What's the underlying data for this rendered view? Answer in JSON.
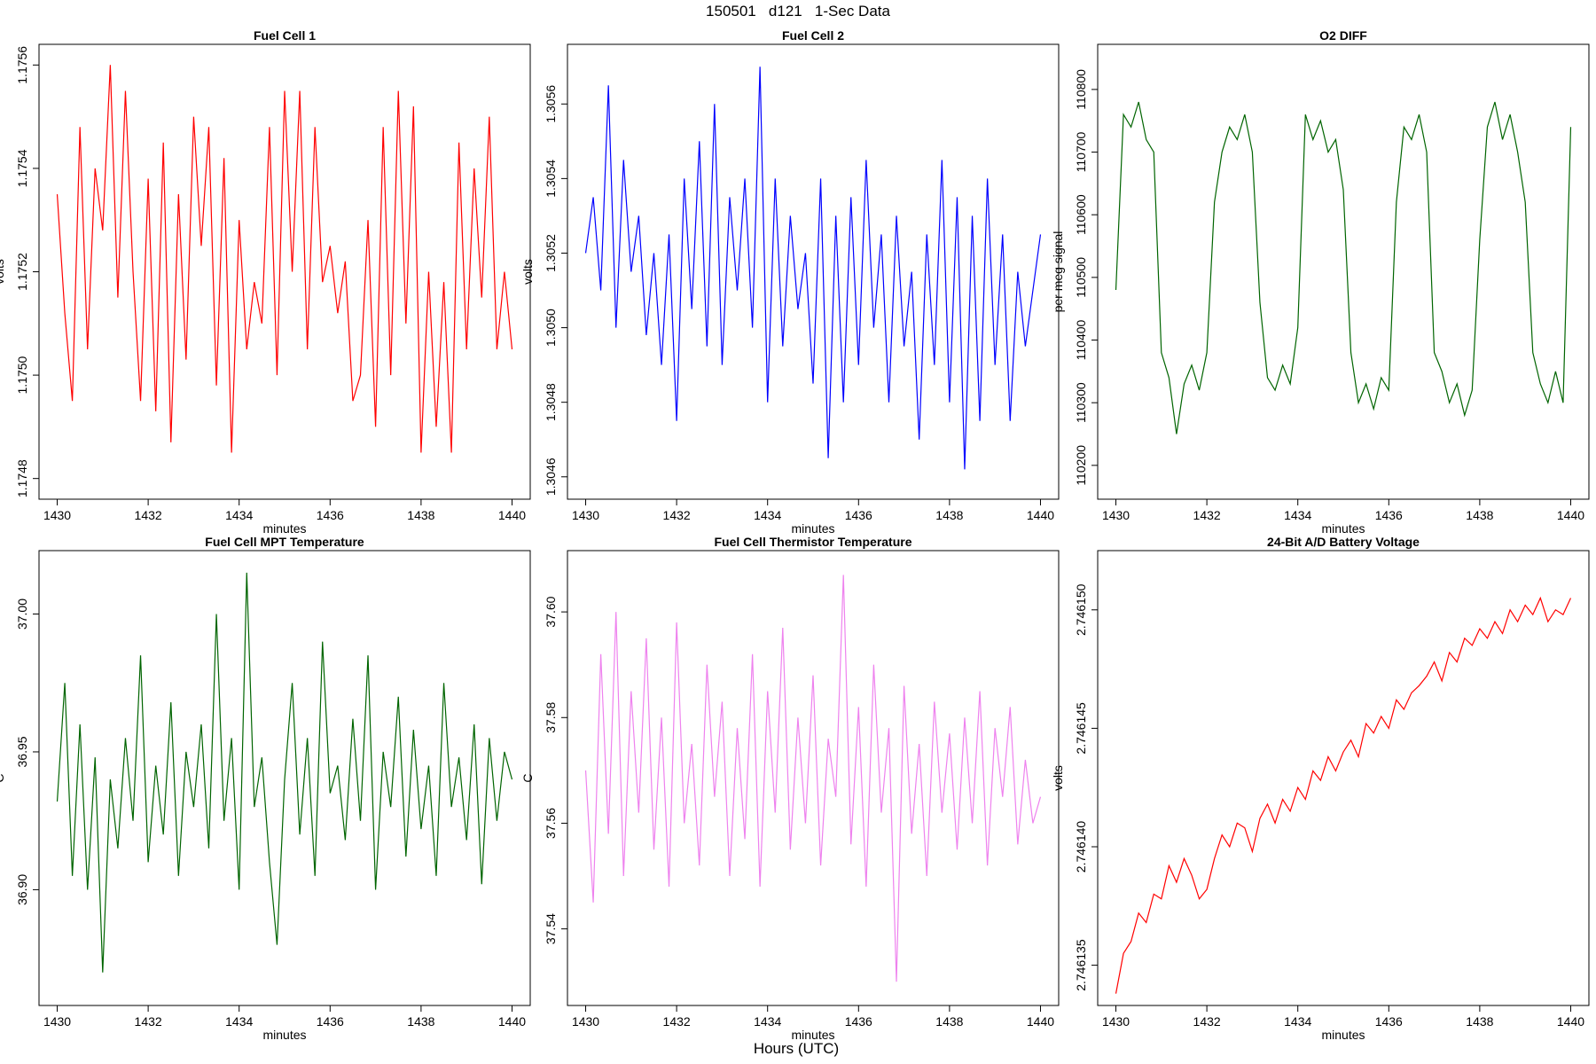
{
  "title": "150501   d121   1-Sec Data",
  "xlabel": "Hours (UTC)",
  "chart_data": [
    {
      "type": "line",
      "title": "Fuel Cell 1",
      "xlabel": "minutes",
      "ylabel": "volts",
      "xlim": [
        1429.6,
        1440.4
      ],
      "xticks": [
        1430,
        1432,
        1434,
        1436,
        1438,
        1440
      ],
      "ylim": [
        1.17476,
        1.17564
      ],
      "yticks": [
        1.1748,
        {
          "value": 1.175,
          "label": "1.1750"
        },
        1.1752,
        1.1754,
        1.1756
      ],
      "x": [
        1430,
        1430.167,
        1430.333,
        1430.5,
        1430.667,
        1430.833,
        1431,
        1431.167,
        1431.333,
        1431.5,
        1431.667,
        1431.833,
        1432,
        1432.167,
        1432.333,
        1432.5,
        1432.667,
        1432.833,
        1433,
        1433.167,
        1433.333,
        1433.5,
        1433.667,
        1433.833,
        1434,
        1434.167,
        1434.333,
        1434.5,
        1434.667,
        1434.833,
        1435,
        1435.167,
        1435.333,
        1435.5,
        1435.667,
        1435.833,
        1436,
        1436.167,
        1436.333,
        1436.5,
        1436.667,
        1436.833,
        1437,
        1437.167,
        1437.333,
        1437.5,
        1437.667,
        1437.833,
        1438,
        1438.167,
        1438.333,
        1438.5,
        1438.667,
        1438.833,
        1439,
        1439.167,
        1439.333,
        1439.5,
        1439.667,
        1439.833,
        1440
      ],
      "series": [
        {
          "color": "#ff0000",
          "values": [
            1.17535,
            1.17512,
            1.17495,
            1.17548,
            1.17505,
            1.1754,
            1.17528,
            1.1756,
            1.17515,
            1.17555,
            1.1752,
            1.17495,
            1.17538,
            1.17493,
            1.17545,
            1.17487,
            1.17535,
            1.17503,
            1.1755,
            1.17525,
            1.17548,
            1.17498,
            1.17542,
            1.17485,
            1.1753,
            1.17505,
            1.17518,
            1.1751,
            1.17548,
            1.175,
            1.17555,
            1.1752,
            1.17555,
            1.17505,
            1.17548,
            1.17518,
            1.17525,
            1.17512,
            1.17522,
            1.17495,
            1.175,
            1.1753,
            1.1749,
            1.17548,
            1.175,
            1.17555,
            1.1751,
            1.17552,
            1.17485,
            1.1752,
            1.1749,
            1.17518,
            1.17485,
            1.17545,
            1.17505,
            1.1754,
            1.17515,
            1.1755,
            1.17505,
            1.1752,
            1.17505
          ]
        }
      ]
    },
    {
      "type": "line",
      "title": "Fuel Cell 2",
      "xlabel": "minutes",
      "ylabel": "volts",
      "xlim": [
        1429.6,
        1440.4
      ],
      "xticks": [
        1430,
        1432,
        1434,
        1436,
        1438,
        1440
      ],
      "ylim": [
        1.30454,
        1.30576
      ],
      "yticks": [
        1.3046,
        1.3048,
        {
          "value": 1.305,
          "label": "1.3050"
        },
        1.3052,
        1.3054,
        1.3056
      ],
      "x": [
        1430,
        1430.167,
        1430.333,
        1430.5,
        1430.667,
        1430.833,
        1431,
        1431.167,
        1431.333,
        1431.5,
        1431.667,
        1431.833,
        1432,
        1432.167,
        1432.333,
        1432.5,
        1432.667,
        1432.833,
        1433,
        1433.167,
        1433.333,
        1433.5,
        1433.667,
        1433.833,
        1434,
        1434.167,
        1434.333,
        1434.5,
        1434.667,
        1434.833,
        1435,
        1435.167,
        1435.333,
        1435.5,
        1435.667,
        1435.833,
        1436,
        1436.167,
        1436.333,
        1436.5,
        1436.667,
        1436.833,
        1437,
        1437.167,
        1437.333,
        1437.5,
        1437.667,
        1437.833,
        1438,
        1438.167,
        1438.333,
        1438.5,
        1438.667,
        1438.833,
        1439,
        1439.167,
        1439.333,
        1439.5,
        1439.667,
        1439.833,
        1440
      ],
      "series": [
        {
          "color": "#0000ff",
          "values": [
            1.3052,
            1.30535,
            1.3051,
            1.30565,
            1.305,
            1.30545,
            1.30515,
            1.3053,
            1.30498,
            1.3052,
            1.3049,
            1.30525,
            1.30475,
            1.3054,
            1.30505,
            1.3055,
            1.30495,
            1.3056,
            1.3049,
            1.30535,
            1.3051,
            1.3054,
            1.305,
            1.3057,
            1.3048,
            1.3054,
            1.30495,
            1.3053,
            1.30505,
            1.3052,
            1.30485,
            1.3054,
            1.30465,
            1.3053,
            1.3048,
            1.30535,
            1.3049,
            1.30545,
            1.305,
            1.30525,
            1.3048,
            1.3053,
            1.30495,
            1.30515,
            1.3047,
            1.30525,
            1.3049,
            1.30545,
            1.3048,
            1.30535,
            1.30462,
            1.3053,
            1.30475,
            1.3054,
            1.3049,
            1.30525,
            1.30475,
            1.30515,
            1.30495,
            1.3051,
            1.30525
          ]
        }
      ]
    },
    {
      "type": "line",
      "title": "O2 DIFF",
      "xlabel": "minutes",
      "ylabel": "per meg signal",
      "xlim": [
        1429.6,
        1440.4
      ],
      "xticks": [
        1430,
        1432,
        1434,
        1436,
        1438,
        1440
      ],
      "ylim": [
        110146,
        110872
      ],
      "yticks": [
        110200,
        110300,
        110400,
        110500,
        110600,
        110700,
        110800
      ],
      "x": [
        1430,
        1430.167,
        1430.333,
        1430.5,
        1430.667,
        1430.833,
        1431,
        1431.167,
        1431.333,
        1431.5,
        1431.667,
        1431.833,
        1432,
        1432.167,
        1432.333,
        1432.5,
        1432.667,
        1432.833,
        1433,
        1433.167,
        1433.333,
        1433.5,
        1433.667,
        1433.833,
        1434,
        1434.167,
        1434.333,
        1434.5,
        1434.667,
        1434.833,
        1435,
        1435.167,
        1435.333,
        1435.5,
        1435.667,
        1435.833,
        1436,
        1436.167,
        1436.333,
        1436.5,
        1436.667,
        1436.833,
        1437,
        1437.167,
        1437.333,
        1437.5,
        1437.667,
        1437.833,
        1438,
        1438.167,
        1438.333,
        1438.5,
        1438.667,
        1438.833,
        1439,
        1439.167,
        1439.333,
        1439.5,
        1439.667,
        1439.833,
        1440
      ],
      "series": [
        {
          "color": "#006400",
          "values": [
            110480,
            110760,
            110740,
            110780,
            110720,
            110700,
            110380,
            110340,
            110250,
            110330,
            110360,
            110320,
            110380,
            110620,
            110700,
            110740,
            110720,
            110760,
            110700,
            110460,
            110340,
            110320,
            110360,
            110330,
            110420,
            110760,
            110720,
            110750,
            110700,
            110720,
            110640,
            110380,
            110300,
            110330,
            110290,
            110340,
            110320,
            110620,
            110740,
            110720,
            110760,
            110700,
            110380,
            110350,
            110300,
            110330,
            110280,
            110320,
            110560,
            110740,
            110780,
            110720,
            110760,
            110700,
            110620,
            110380,
            110330,
            110300,
            110350,
            110300,
            110740
          ]
        }
      ]
    },
    {
      "type": "line",
      "title": "Fuel Cell MPT Temperature",
      "xlabel": "minutes",
      "ylabel": "C",
      "xlim": [
        1429.6,
        1440.4
      ],
      "xticks": [
        1430,
        1432,
        1434,
        1436,
        1438,
        1440
      ],
      "ylim": [
        36.858,
        37.023
      ],
      "yticks": [
        {
          "value": 36.9,
          "label": "36.90"
        },
        36.95,
        {
          "value": 37,
          "label": "37.00"
        }
      ],
      "x": [
        1430,
        1430.167,
        1430.333,
        1430.5,
        1430.667,
        1430.833,
        1431,
        1431.167,
        1431.333,
        1431.5,
        1431.667,
        1431.833,
        1432,
        1432.167,
        1432.333,
        1432.5,
        1432.667,
        1432.833,
        1433,
        1433.167,
        1433.333,
        1433.5,
        1433.667,
        1433.833,
        1434,
        1434.167,
        1434.333,
        1434.5,
        1434.667,
        1434.833,
        1435,
        1435.167,
        1435.333,
        1435.5,
        1435.667,
        1435.833,
        1436,
        1436.167,
        1436.333,
        1436.5,
        1436.667,
        1436.833,
        1437,
        1437.167,
        1437.333,
        1437.5,
        1437.667,
        1437.833,
        1438,
        1438.167,
        1438.333,
        1438.5,
        1438.667,
        1438.833,
        1439,
        1439.167,
        1439.333,
        1439.5,
        1439.667,
        1439.833,
        1440
      ],
      "series": [
        {
          "color": "#006400",
          "values": [
            36.932,
            36.975,
            36.905,
            36.96,
            36.9,
            36.948,
            36.87,
            36.94,
            36.915,
            36.955,
            36.925,
            36.985,
            36.91,
            36.945,
            36.92,
            36.968,
            36.905,
            36.95,
            36.93,
            36.96,
            36.915,
            37.0,
            36.925,
            36.955,
            36.9,
            37.015,
            36.93,
            36.948,
            36.91,
            36.88,
            36.94,
            36.975,
            36.92,
            36.955,
            36.905,
            36.99,
            36.935,
            36.945,
            36.918,
            36.962,
            36.925,
            36.985,
            36.9,
            36.95,
            36.93,
            36.97,
            36.912,
            36.958,
            36.922,
            36.945,
            36.905,
            36.975,
            36.93,
            36.948,
            36.918,
            36.96,
            36.902,
            36.955,
            36.925,
            36.95,
            36.94
          ]
        }
      ]
    },
    {
      "type": "line",
      "title": "Fuel Cell Thermistor Temperature",
      "xlabel": "minutes",
      "ylabel": "C",
      "xlim": [
        1429.6,
        1440.4
      ],
      "xticks": [
        1430,
        1432,
        1434,
        1436,
        1438,
        1440
      ],
      "ylim": [
        37.5255,
        37.6116
      ],
      "yticks": [
        37.54,
        37.56,
        37.58,
        {
          "value": 37.6,
          "label": "37.60"
        }
      ],
      "x": [
        1430,
        1430.167,
        1430.333,
        1430.5,
        1430.667,
        1430.833,
        1431,
        1431.167,
        1431.333,
        1431.5,
        1431.667,
        1431.833,
        1432,
        1432.167,
        1432.333,
        1432.5,
        1432.667,
        1432.833,
        1433,
        1433.167,
        1433.333,
        1433.5,
        1433.667,
        1433.833,
        1434,
        1434.167,
        1434.333,
        1434.5,
        1434.667,
        1434.833,
        1435,
        1435.167,
        1435.333,
        1435.5,
        1435.667,
        1435.833,
        1436,
        1436.167,
        1436.333,
        1436.5,
        1436.667,
        1436.833,
        1437,
        1437.167,
        1437.333,
        1437.5,
        1437.667,
        1437.833,
        1438,
        1438.167,
        1438.333,
        1438.5,
        1438.667,
        1438.833,
        1439,
        1439.167,
        1439.333,
        1439.5,
        1439.667,
        1439.833,
        1440
      ],
      "series": [
        {
          "color": "#ee82ee",
          "values": [
            37.57,
            37.545,
            37.592,
            37.558,
            37.6,
            37.55,
            37.585,
            37.562,
            37.595,
            37.555,
            37.58,
            37.548,
            37.598,
            37.56,
            37.575,
            37.552,
            37.59,
            37.565,
            37.583,
            37.55,
            37.578,
            37.557,
            37.592,
            37.548,
            37.585,
            37.562,
            37.597,
            37.555,
            37.58,
            37.56,
            37.588,
            37.552,
            37.576,
            37.565,
            37.607,
            37.556,
            37.582,
            37.548,
            37.59,
            37.562,
            37.578,
            37.53,
            37.586,
            37.558,
            37.575,
            37.55,
            37.583,
            37.562,
            37.577,
            37.555,
            37.58,
            37.56,
            37.585,
            37.552,
            37.578,
            37.565,
            37.582,
            37.556,
            37.572,
            37.56,
            37.565
          ]
        }
      ]
    },
    {
      "type": "line",
      "title": "24-Bit A/D Battery Voltage",
      "xlabel": "minutes",
      "ylabel": "volts",
      "xlim": [
        1429.6,
        1440.4
      ],
      "xticks": [
        1430,
        1432,
        1434,
        1436,
        1438,
        1440
      ],
      "ylim": [
        2.7461333,
        2.7461525
      ],
      "yticks": [
        2.746135,
        {
          "value": 2.74614,
          "label": "2.746140"
        },
        2.746145,
        {
          "value": 2.74615,
          "label": "2.746150"
        }
      ],
      "x": [
        1430,
        1430.167,
        1430.333,
        1430.5,
        1430.667,
        1430.833,
        1431,
        1431.167,
        1431.333,
        1431.5,
        1431.667,
        1431.833,
        1432,
        1432.167,
        1432.333,
        1432.5,
        1432.667,
        1432.833,
        1433,
        1433.167,
        1433.333,
        1433.5,
        1433.667,
        1433.833,
        1434,
        1434.167,
        1434.333,
        1434.5,
        1434.667,
        1434.833,
        1435,
        1435.167,
        1435.333,
        1435.5,
        1435.667,
        1435.833,
        1436,
        1436.167,
        1436.333,
        1436.5,
        1436.667,
        1436.833,
        1437,
        1437.167,
        1437.333,
        1437.5,
        1437.667,
        1437.833,
        1438,
        1438.167,
        1438.333,
        1438.5,
        1438.667,
        1438.833,
        1439,
        1439.167,
        1439.333,
        1439.5,
        1439.667,
        1439.833,
        1440
      ],
      "series": [
        {
          "color": "#ff0000",
          "values": [
            2.7461338,
            2.7461355,
            2.746136,
            2.7461372,
            2.7461368,
            2.746138,
            2.7461378,
            2.7461392,
            2.7461385,
            2.7461395,
            2.7461388,
            2.7461378,
            2.7461382,
            2.7461395,
            2.7461405,
            2.74614,
            2.746141,
            2.7461408,
            2.7461398,
            2.7461412,
            2.7461418,
            2.746141,
            2.746142,
            2.7461415,
            2.7461425,
            2.746142,
            2.7461432,
            2.7461428,
            2.7461438,
            2.7461432,
            2.746144,
            2.7461445,
            2.7461438,
            2.7461452,
            2.7461448,
            2.7461455,
            2.746145,
            2.7461462,
            2.7461458,
            2.7461465,
            2.7461468,
            2.7461472,
            2.7461478,
            2.746147,
            2.7461482,
            2.7461478,
            2.7461488,
            2.7461485,
            2.7461492,
            2.7461488,
            2.7461495,
            2.746149,
            2.74615,
            2.7461495,
            2.7461502,
            2.7461498,
            2.7461505,
            2.7461495,
            2.74615,
            2.7461498,
            2.7461505
          ]
        }
      ]
    }
  ]
}
